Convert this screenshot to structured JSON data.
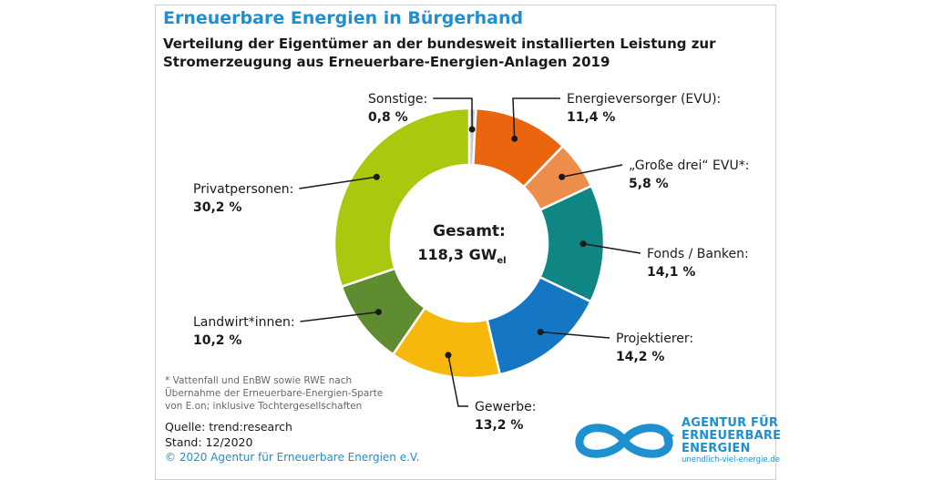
{
  "header": {
    "title": "Erneuerbare Energien in Bürgerhand",
    "subtitle_line1": "Verteilung der Eigentümer an der bundesweit installierten Leistung zur",
    "subtitle_line2": "Stromerzeugung aus Erneuerbare-Energien-Anlagen 2019"
  },
  "center": {
    "label": "Gesamt:",
    "value": "118,3 GW",
    "unit_sub": "el"
  },
  "chart_data": {
    "type": "pie",
    "donut": true,
    "title": "Erneuerbare Energien in Bürgerhand",
    "total_label": "Gesamt: 118,3 GWel",
    "start": "top, clockwise",
    "categories": [
      "Sonstige:",
      "Energieversorger (EVU):",
      "„Große drei“ EVU*:",
      "Fonds / Banken:",
      "Projektierer:",
      "Gewerbe:",
      "Landwirt*innen:",
      "Privatpersonen:"
    ],
    "values": [
      0.8,
      11.4,
      5.8,
      14.1,
      14.2,
      13.2,
      10.2,
      30.2
    ],
    "value_labels": [
      "0,8 %",
      "11,4 %",
      "5,8 %",
      "14,1 %",
      "14,2 %",
      "13,2 %",
      "10,2 %",
      "30,2 %"
    ],
    "colors": [
      "#c9c9c9",
      "#e9660f",
      "#ee8e4c",
      "#0f8584",
      "#1577c4",
      "#f6b80a",
      "#5f8c31",
      "#a9c90f"
    ]
  },
  "footnote": {
    "line1": "* Vattenfall und EnBW sowie RWE nach",
    "line2": "Übernahme der Erneuerbare-Energien-Sparte",
    "line3": "von E.on; inklusive Tochtergesellschaften"
  },
  "source": {
    "quelle": "Quelle: trend:research",
    "stand": "Stand: 12/2020"
  },
  "copyright": "© 2020 Agentur für Erneuerbare Energien e.V.",
  "logo": {
    "line1": "AGENTUR FÜR",
    "line2": "ERNEUERBARE",
    "line3": "ENERGIEN",
    "url": "unendlich-viel-energie.de",
    "icon": "infinity-logo-icon"
  }
}
